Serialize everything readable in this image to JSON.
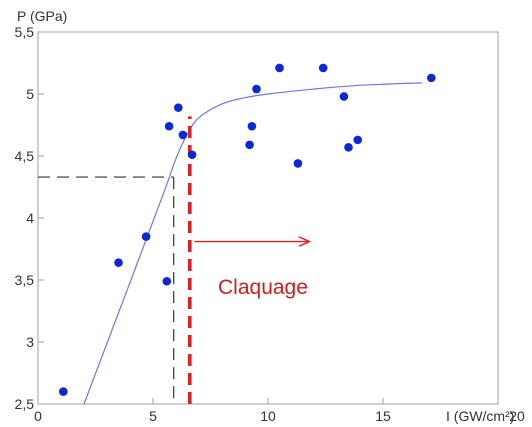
{
  "chart_data": {
    "type": "scatter",
    "title": "",
    "xlabel": "I (GW/cm²)",
    "ylabel": "P (GPa)",
    "xlim": [
      0,
      20
    ],
    "ylim": [
      2.5,
      5.5
    ],
    "x_ticks": [
      {
        "value": 0,
        "label": "0"
      },
      {
        "value": 5,
        "label": "5"
      },
      {
        "value": 10,
        "label": "10"
      },
      {
        "value": 15,
        "label": "15"
      },
      {
        "value": 20,
        "label": "20"
      }
    ],
    "y_ticks": [
      {
        "value": 2.5,
        "label": "2,5"
      },
      {
        "value": 3,
        "label": "3"
      },
      {
        "value": 3.5,
        "label": "3,5"
      },
      {
        "value": 4,
        "label": "4"
      },
      {
        "value": 4.5,
        "label": "4,5"
      },
      {
        "value": 5,
        "label": "5"
      },
      {
        "value": 5.5,
        "label": "5,5"
      }
    ],
    "grid": false,
    "points": [
      {
        "x": 1.1,
        "y": 2.6
      },
      {
        "x": 3.5,
        "y": 3.64
      },
      {
        "x": 4.7,
        "y": 3.85
      },
      {
        "x": 5.6,
        "y": 3.49
      },
      {
        "x": 5.7,
        "y": 4.74
      },
      {
        "x": 6.1,
        "y": 4.89
      },
      {
        "x": 6.3,
        "y": 4.67
      },
      {
        "x": 6.7,
        "y": 4.51
      },
      {
        "x": 9.2,
        "y": 4.59
      },
      {
        "x": 9.3,
        "y": 4.74
      },
      {
        "x": 9.5,
        "y": 5.04
      },
      {
        "x": 10.5,
        "y": 5.21
      },
      {
        "x": 11.3,
        "y": 4.44
      },
      {
        "x": 12.4,
        "y": 5.21
      },
      {
        "x": 13.3,
        "y": 4.98
      },
      {
        "x": 13.5,
        "y": 4.57
      },
      {
        "x": 13.9,
        "y": 4.63
      },
      {
        "x": 17.1,
        "y": 5.13
      }
    ],
    "fit_curve": [
      {
        "x": 2.0,
        "y": 2.5
      },
      {
        "x": 4.0,
        "y": 3.48
      },
      {
        "x": 5.5,
        "y": 4.22
      },
      {
        "x": 6.0,
        "y": 4.48
      },
      {
        "x": 6.5,
        "y": 4.68
      },
      {
        "x": 7.0,
        "y": 4.81
      },
      {
        "x": 8.0,
        "y": 4.92
      },
      {
        "x": 9.0,
        "y": 4.97
      },
      {
        "x": 10.0,
        "y": 5.0
      },
      {
        "x": 12.0,
        "y": 5.04
      },
      {
        "x": 14.0,
        "y": 5.07
      },
      {
        "x": 16.7,
        "y": 5.09
      }
    ],
    "threshold_line": {
      "x": 6.6,
      "y0": 2.5,
      "y1": 4.82,
      "color": "#e02020"
    },
    "reference_lines": {
      "x": 5.9,
      "y": 4.33
    },
    "annotation": {
      "text": "Claquage",
      "color": "#cc1f1f",
      "arrow_from_x": 6.8,
      "arrow_to_x": 11.8,
      "y": 3.81
    },
    "colors": {
      "points": "#0a28d8",
      "fit_curve": "#6f78e0",
      "frame": "#a0a0a0"
    }
  }
}
